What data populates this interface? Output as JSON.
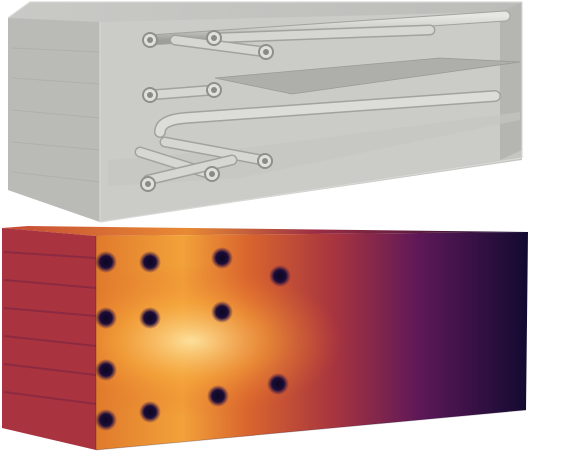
{
  "figure": {
    "panels": [
      {
        "id": "top",
        "kind": "translucent-block-with-pipes",
        "block_color": "#bdbdbb",
        "pipe_color": "#d2d2cf",
        "shelf_color": "#b3b3af"
      },
      {
        "id": "bottom",
        "kind": "heatmap-block",
        "colormap": [
          "#0d0829",
          "#3b0f55",
          "#7a1f5f",
          "#b8383f",
          "#e56b2a",
          "#f7a83c",
          "#fde9a6"
        ]
      }
    ],
    "text": []
  }
}
